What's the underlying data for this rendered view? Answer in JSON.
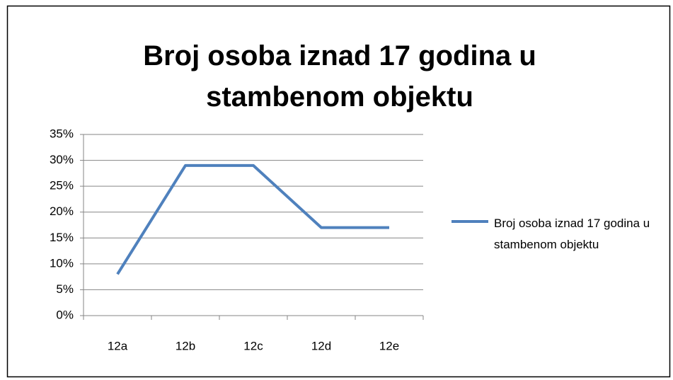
{
  "chart_data": {
    "type": "line",
    "title": "Broj osoba iznad 17 godina u stambenom objektu",
    "categories": [
      "12a",
      "12b",
      "12c",
      "12d",
      "12e"
    ],
    "series": [
      {
        "name": "Broj osoba iznad 17 godina u stambenom objektu",
        "color": "#4f81bd",
        "values": [
          8,
          29,
          29,
          17,
          17
        ]
      }
    ],
    "ylim": [
      0,
      35
    ],
    "yticks": [
      {
        "value": 0,
        "label": "0%"
      },
      {
        "value": 5,
        "label": "5%"
      },
      {
        "value": 10,
        "label": "10%"
      },
      {
        "value": 15,
        "label": "15%"
      },
      {
        "value": 20,
        "label": "20%"
      },
      {
        "value": 25,
        "label": "25%"
      },
      {
        "value": 30,
        "label": "30%"
      },
      {
        "value": 35,
        "label": "35%"
      }
    ],
    "grid": true,
    "legend": "right"
  }
}
